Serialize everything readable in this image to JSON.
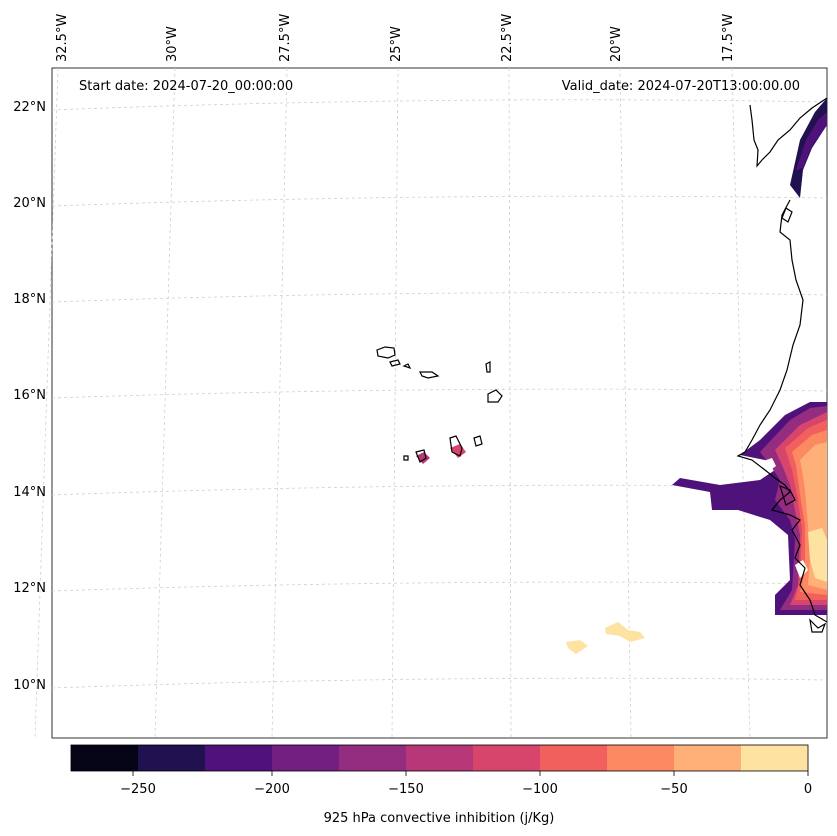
{
  "map": {
    "start_label": "Start date: 2024-07-20_00:00:00",
    "valid_label": "Valid_date: 2024-07-20T13:00:00.00",
    "lon_labels": [
      "32.5°W",
      "30°W",
      "27.5°W",
      "25°W",
      "22.5°W",
      "20°W",
      "17.5°W"
    ],
    "lat_labels": [
      "22°N",
      "20°N",
      "18°N",
      "16°N",
      "14°N",
      "12°N",
      "10°N"
    ],
    "colorbar": {
      "label": "925 hPa convective inhibition (j/Kg)",
      "ticks": [
        "−250",
        "−200",
        "−150",
        "−100",
        "−50",
        "0"
      ],
      "colors": [
        "#050417",
        "#221150",
        "#4f127b",
        "#721f81",
        "#942c80",
        "#b73779",
        "#d8456c",
        "#f1605d",
        "#fc8961",
        "#feb078",
        "#fde2a2"
      ]
    }
  }
}
